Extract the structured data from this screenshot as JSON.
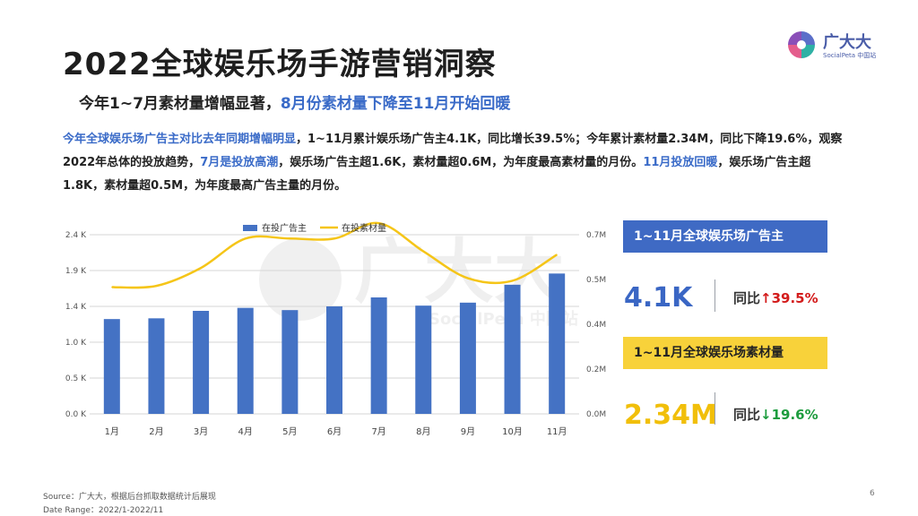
{
  "header": {
    "title": "2022全球娱乐场手游营销洞察",
    "subtitle_plain": "今年1~7月素材量增幅显著，",
    "subtitle_highlight": "8月份素材量下降至11月开始回暖"
  },
  "logo": {
    "name": "广大大",
    "sub": "SocialPeta 中国站"
  },
  "paragraph": {
    "s1_hl": "今年全球娱乐场广告主对比去年同期增幅明显",
    "s2": "，1~11月累计娱乐场广告主4.1K，同比增长39.5%；今年累计素材量2.34M，同比下降19.6%，观察2022年总体的投放趋势，",
    "s3_hl": "7月是投放高潮",
    "s4": "，娱乐场广告主超1.6K，素材量超0.6M，为年度最高素材量的月份。",
    "s5_hl": "11月投放回暖",
    "s6": "，娱乐场广告主超1.8K，素材量超0.5M，为年度最高广告主量的月份。"
  },
  "chart_data": {
    "type": "bar",
    "categories": [
      "1月",
      "2月",
      "3月",
      "4月",
      "5月",
      "6月",
      "7月",
      "8月",
      "9月",
      "10月",
      "11月"
    ],
    "series": [
      {
        "name": "在投广告主",
        "type": "bar",
        "axis": "left",
        "color": "#4472c4",
        "values": [
          1.27,
          1.28,
          1.38,
          1.42,
          1.39,
          1.44,
          1.56,
          1.45,
          1.49,
          1.73,
          1.88
        ]
      },
      {
        "name": "在投素材量",
        "type": "line",
        "axis": "right",
        "color": "#f5c518",
        "values": [
          0.495,
          0.5,
          0.57,
          0.685,
          0.685,
          0.685,
          0.745,
          0.635,
          0.53,
          0.52,
          0.622
        ]
      }
    ],
    "left_axis": {
      "ticks": [
        "0.0 K",
        "0.5 K",
        "1.0 K",
        "1.4 K",
        "1.9 K",
        "2.4 K"
      ],
      "ylim": [
        0,
        2.4
      ]
    },
    "right_axis": {
      "ticks": [
        "0.0M",
        "0.2M",
        "0.4M",
        "0.5M",
        "0.7M"
      ],
      "ylim": [
        0,
        0.7
      ]
    },
    "legend_position": "top-center"
  },
  "cards": {
    "advertiser": {
      "label": "1~11月全球娱乐场广告主",
      "value": "4.1K",
      "yoy_label": "同比",
      "yoy_arrow": "↑",
      "yoy_value": "39.5%"
    },
    "creative": {
      "label": "1~11月全球娱乐场素材量",
      "value": "2.34M",
      "yoy_label": "同比",
      "yoy_arrow": "↓",
      "yoy_value": "19.6%"
    }
  },
  "watermark": {
    "cn": "广大大",
    "en": "SocialPeta 中国站"
  },
  "footer": {
    "source": "Source：广大大，根据后台抓取数据统计后展现",
    "range": "Date Range：2022/1-2022/11",
    "page": "6"
  }
}
